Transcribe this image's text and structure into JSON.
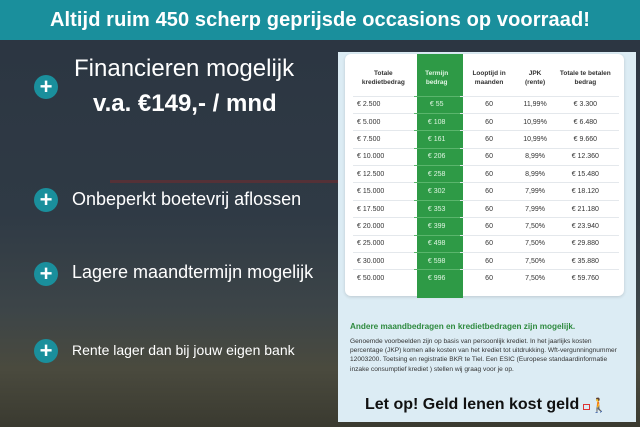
{
  "header": {
    "title": "Altijd ruim 450 scherp geprijsde occasions op voorraad!"
  },
  "features": [
    {
      "line1": "Financieren mogelijk",
      "line2": "v.a. €149,- / mnd"
    },
    {
      "line1": "Onbeperkt boetevrij aflossen"
    },
    {
      "line1": "Lagere maandtermijn mogelijk"
    },
    {
      "line1": "Rente lager dan bij jouw eigen bank"
    }
  ],
  "table": {
    "headers": [
      "Totale kredietbedrag",
      "Termijn bedrag",
      "Looptijd in maanden",
      "JPK (rente)",
      "Totale te betalen bedrag"
    ],
    "rows": [
      [
        "€ 2.500",
        "€ 55",
        "60",
        "11,99%",
        "€ 3.300"
      ],
      [
        "€ 5.000",
        "€ 108",
        "60",
        "10,99%",
        "€ 6.480"
      ],
      [
        "€ 7.500",
        "€ 161",
        "60",
        "10,99%",
        "€ 9.660"
      ],
      [
        "€ 10.000",
        "€ 206",
        "60",
        "8,99%",
        "€ 12.360"
      ],
      [
        "€ 12.500",
        "€ 258",
        "60",
        "8,99%",
        "€ 15.480"
      ],
      [
        "€ 15.000",
        "€ 302",
        "60",
        "7,99%",
        "€ 18.120"
      ],
      [
        "€ 17.500",
        "€ 353",
        "60",
        "7,99%",
        "€ 21.180"
      ],
      [
        "€ 20.000",
        "€ 399",
        "60",
        "7,50%",
        "€ 23.940"
      ],
      [
        "€ 25.000",
        "€ 498",
        "60",
        "7,50%",
        "€ 29.880"
      ],
      [
        "€ 30.000",
        "€ 598",
        "60",
        "7,50%",
        "€ 35.880"
      ],
      [
        "€ 50.000",
        "€ 996",
        "60",
        "7,50%",
        "€ 59.760"
      ]
    ]
  },
  "note": {
    "title": "Andere maandbedragen en kredietbedragen zijn mogelijk.",
    "body": "Genoemde voorbeelden zijn op basis van persoonlijk krediet. In het jaarlijks kosten percentage (JKP) komen alle kosten van het krediet tot uitdrukking. Wft-vergunningnummer 12003200. Toetsing en registratie BKR te Tiel. Een ESIC (Europese standaardinformatie inzake consumptief krediet ) stellen wij graag voor je op.",
    "warning": "Let op! Geld lenen kost geld"
  },
  "colors": {
    "accent": "#1a8f9c",
    "green": "#2e9a46"
  }
}
